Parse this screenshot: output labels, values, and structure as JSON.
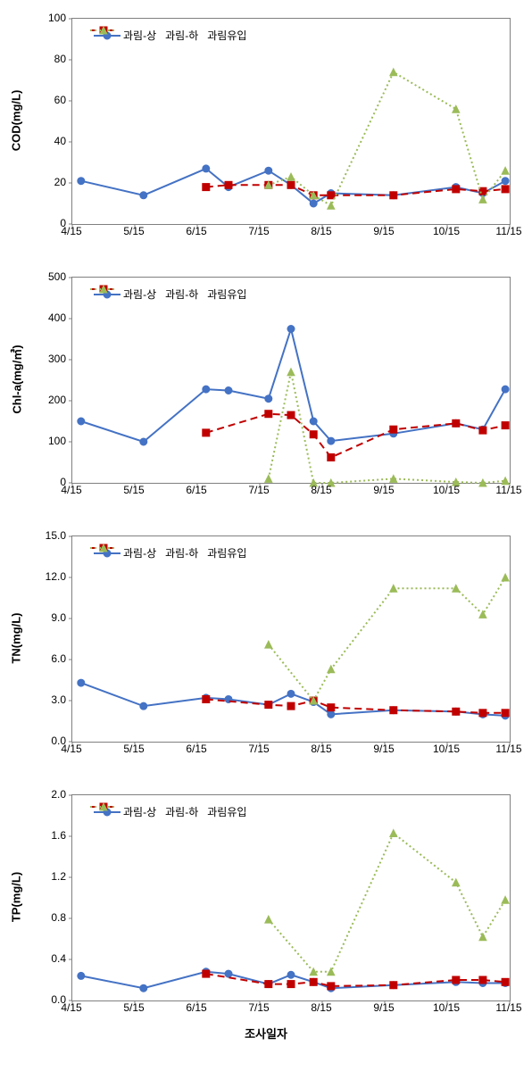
{
  "charts": [
    {
      "ylabel": "COD(mg/L)",
      "ylim": [
        0,
        100
      ],
      "ytick_step": 20,
      "y_decimals": 0,
      "series": [
        {
          "name": "과림-상",
          "color": "#4472c4",
          "marker": "circle",
          "dash": "none",
          "data": [
            [
              0.14,
              21
            ],
            [
              1.14,
              14
            ],
            [
              2.14,
              27
            ],
            [
              2.5,
              18
            ],
            [
              3.14,
              26
            ],
            [
              3.5,
              19
            ],
            [
              3.86,
              10
            ],
            [
              4.14,
              15
            ],
            [
              5.14,
              14
            ],
            [
              6.14,
              18
            ],
            [
              6.57,
              15
            ],
            [
              6.93,
              21
            ]
          ]
        },
        {
          "name": "과림-하",
          "color": "#c00000",
          "marker": "square",
          "dash": "dash",
          "data": [
            [
              2.14,
              18
            ],
            [
              2.5,
              19
            ],
            [
              3.14,
              19
            ],
            [
              3.5,
              19
            ],
            [
              3.86,
              14
            ],
            [
              4.14,
              14
            ],
            [
              5.14,
              14
            ],
            [
              6.14,
              17
            ],
            [
              6.57,
              16
            ],
            [
              6.93,
              17
            ]
          ]
        },
        {
          "name": "과림유입",
          "color": "#9bbb59",
          "marker": "triangle",
          "dash": "dot",
          "data": [
            [
              3.14,
              19
            ],
            [
              3.5,
              23
            ],
            [
              3.86,
              14
            ],
            [
              4.14,
              9
            ],
            [
              5.14,
              74
            ],
            [
              6.14,
              56
            ],
            [
              6.57,
              12
            ],
            [
              6.93,
              26
            ]
          ]
        }
      ]
    },
    {
      "ylabel": "Chl-a(mg/㎥)",
      "ylim": [
        0,
        500
      ],
      "ytick_step": 100,
      "y_decimals": 0,
      "series": [
        {
          "name": "과림-상",
          "color": "#4472c4",
          "marker": "circle",
          "dash": "none",
          "data": [
            [
              0.14,
              150
            ],
            [
              1.14,
              100
            ],
            [
              2.14,
              228
            ],
            [
              2.5,
              225
            ],
            [
              3.14,
              205
            ],
            [
              3.5,
              375
            ],
            [
              3.86,
              150
            ],
            [
              4.14,
              102
            ],
            [
              5.14,
              120
            ],
            [
              6.14,
              145
            ],
            [
              6.57,
              130
            ],
            [
              6.93,
              228
            ]
          ]
        },
        {
          "name": "과림-하",
          "color": "#c00000",
          "marker": "square",
          "dash": "dash",
          "data": [
            [
              2.14,
              122
            ],
            [
              3.14,
              168
            ],
            [
              3.5,
              165
            ],
            [
              3.86,
              118
            ],
            [
              4.14,
              62
            ],
            [
              5.14,
              130
            ],
            [
              6.14,
              145
            ],
            [
              6.57,
              128
            ],
            [
              6.93,
              140
            ]
          ]
        },
        {
          "name": "과림유입",
          "color": "#9bbb59",
          "marker": "triangle",
          "dash": "dot",
          "data": [
            [
              3.14,
              10
            ],
            [
              3.5,
              270
            ],
            [
              3.86,
              0
            ],
            [
              4.14,
              0
            ],
            [
              5.14,
              10
            ],
            [
              6.14,
              2
            ],
            [
              6.57,
              0
            ],
            [
              6.93,
              5
            ]
          ]
        }
      ]
    },
    {
      "ylabel": "TN(mg/L)",
      "ylim": [
        0,
        15
      ],
      "ytick_step": 3,
      "y_decimals": 1,
      "series": [
        {
          "name": "과림-상",
          "color": "#4472c4",
          "marker": "circle",
          "dash": "none",
          "data": [
            [
              0.14,
              4.3
            ],
            [
              1.14,
              2.6
            ],
            [
              2.14,
              3.2
            ],
            [
              2.5,
              3.1
            ],
            [
              3.14,
              2.7
            ],
            [
              3.5,
              3.5
            ],
            [
              3.86,
              2.9
            ],
            [
              4.14,
              2.0
            ],
            [
              5.14,
              2.3
            ],
            [
              6.14,
              2.2
            ],
            [
              6.57,
              2.0
            ],
            [
              6.93,
              1.9
            ]
          ]
        },
        {
          "name": "과림-하",
          "color": "#c00000",
          "marker": "square",
          "dash": "dash",
          "data": [
            [
              2.14,
              3.1
            ],
            [
              3.14,
              2.7
            ],
            [
              3.5,
              2.6
            ],
            [
              3.86,
              3.0
            ],
            [
              4.14,
              2.5
            ],
            [
              5.14,
              2.3
            ],
            [
              6.14,
              2.2
            ],
            [
              6.57,
              2.1
            ],
            [
              6.93,
              2.1
            ]
          ]
        },
        {
          "name": "과림유입",
          "color": "#9bbb59",
          "marker": "triangle",
          "dash": "dot",
          "data": [
            [
              3.14,
              7.1
            ],
            [
              3.86,
              3.0
            ],
            [
              4.14,
              5.3
            ],
            [
              5.14,
              11.2
            ],
            [
              6.14,
              11.2
            ],
            [
              6.57,
              9.3
            ],
            [
              6.93,
              12.0
            ]
          ]
        }
      ]
    },
    {
      "ylabel": "TP(mg/L)",
      "ylim": [
        0,
        2
      ],
      "ytick_step": 0.4,
      "y_decimals": 1,
      "series": [
        {
          "name": "과림-상",
          "color": "#4472c4",
          "marker": "circle",
          "dash": "none",
          "data": [
            [
              0.14,
              0.24
            ],
            [
              1.14,
              0.12
            ],
            [
              2.14,
              0.28
            ],
            [
              2.5,
              0.26
            ],
            [
              3.14,
              0.16
            ],
            [
              3.5,
              0.25
            ],
            [
              3.86,
              0.18
            ],
            [
              4.14,
              0.12
            ],
            [
              5.14,
              0.15
            ],
            [
              6.14,
              0.18
            ],
            [
              6.57,
              0.17
            ],
            [
              6.93,
              0.17
            ]
          ]
        },
        {
          "name": "과림-하",
          "color": "#c00000",
          "marker": "square",
          "dash": "dash",
          "data": [
            [
              2.14,
              0.26
            ],
            [
              3.14,
              0.16
            ],
            [
              3.5,
              0.16
            ],
            [
              3.86,
              0.18
            ],
            [
              4.14,
              0.14
            ],
            [
              5.14,
              0.15
            ],
            [
              6.14,
              0.2
            ],
            [
              6.57,
              0.2
            ],
            [
              6.93,
              0.18
            ]
          ]
        },
        {
          "name": "과림유입",
          "color": "#9bbb59",
          "marker": "triangle",
          "dash": "dot",
          "data": [
            [
              3.14,
              0.79
            ],
            [
              3.86,
              0.28
            ],
            [
              4.14,
              0.28
            ],
            [
              5.14,
              1.63
            ],
            [
              6.14,
              1.15
            ],
            [
              6.57,
              0.62
            ],
            [
              6.93,
              0.98
            ]
          ]
        }
      ]
    }
  ],
  "x_ticks": [
    "4/15",
    "5/15",
    "6/15",
    "7/15",
    "8/15",
    "9/15",
    "10/15",
    "11/15"
  ],
  "x_label": "조사일자",
  "legend_labels": [
    "과림-상",
    "과림-하",
    "과림유입"
  ],
  "colors": {
    "series1": "#4472c4",
    "series2": "#c00000",
    "series3": "#9bbb59",
    "border": "#808080"
  }
}
